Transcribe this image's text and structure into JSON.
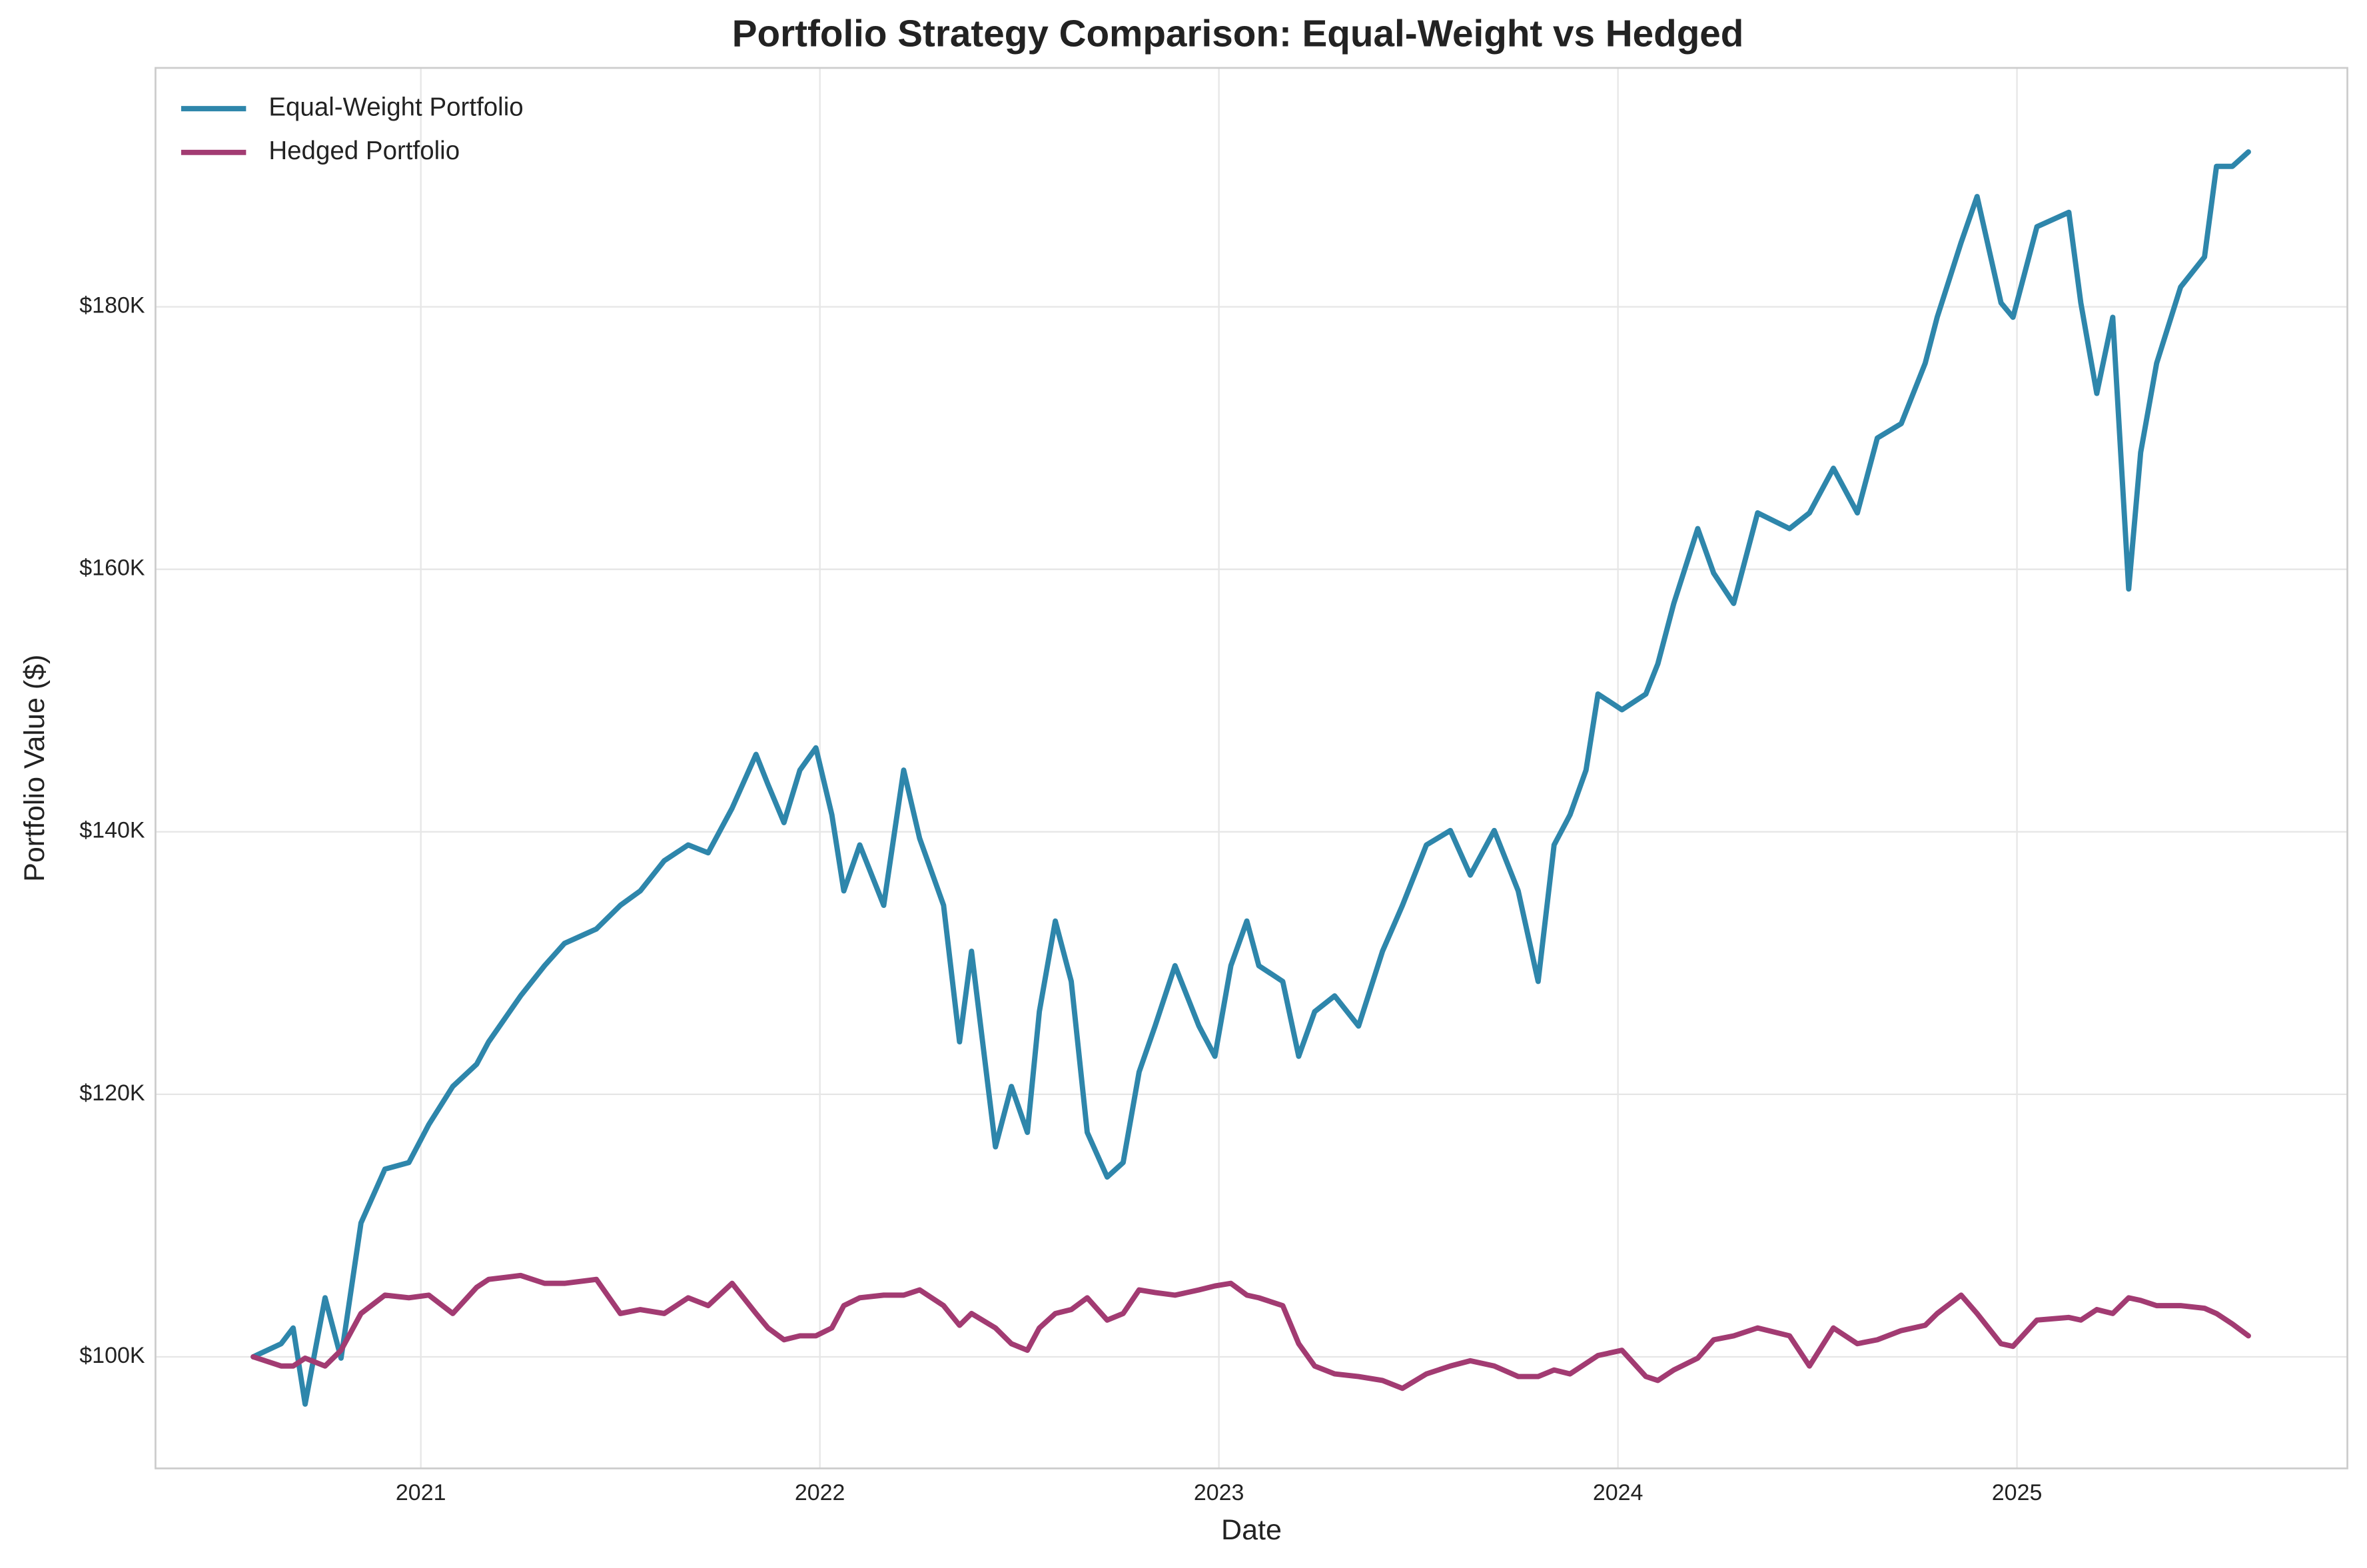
{
  "chart_data": {
    "type": "line",
    "title": "Portfolio Strategy Comparison: Equal-Weight vs Hedged",
    "xlabel": "Date",
    "ylabel": "Portfolio Value ($)",
    "grid": true,
    "legend": "upper left",
    "xlim": [
      2020.335,
      2025.828
    ],
    "xticks": [
      2021,
      2022,
      2023,
      2024,
      2025
    ],
    "ylim": [
      91500,
      198200
    ],
    "yticks": [
      {
        "value": 100000,
        "label": "$100K"
      },
      {
        "value": 120000,
        "label": "$120K"
      },
      {
        "value": 140000,
        "label": "$140K"
      },
      {
        "value": 160000,
        "label": "$160K"
      },
      {
        "value": 180000,
        "label": "$180K"
      }
    ],
    "x": [
      2020.58,
      2020.65,
      2020.68,
      2020.71,
      2020.76,
      2020.8,
      2020.85,
      2020.91,
      2020.97,
      2021.02,
      2021.08,
      2021.14,
      2021.17,
      2021.25,
      2021.31,
      2021.36,
      2021.44,
      2021.5,
      2021.55,
      2021.61,
      2021.67,
      2021.72,
      2021.78,
      2021.84,
      2021.87,
      2021.91,
      2021.95,
      2021.99,
      2022.03,
      2022.06,
      2022.1,
      2022.16,
      2022.21,
      2022.25,
      2022.31,
      2022.35,
      2022.38,
      2022.44,
      2022.48,
      2022.52,
      2022.55,
      2022.59,
      2022.63,
      2022.67,
      2022.72,
      2022.76,
      2022.8,
      2022.84,
      2022.89,
      2022.95,
      2022.99,
      2023.03,
      2023.07,
      2023.1,
      2023.16,
      2023.2,
      2023.24,
      2023.29,
      2023.35,
      2023.41,
      2023.46,
      2023.52,
      2023.58,
      2023.63,
      2023.69,
      2023.75,
      2023.8,
      2023.84,
      2023.88,
      2023.92,
      2023.95,
      2024.01,
      2024.07,
      2024.1,
      2024.14,
      2024.2,
      2024.24,
      2024.29,
      2024.35,
      2024.43,
      2024.48,
      2024.54,
      2024.6,
      2024.65,
      2024.71,
      2024.77,
      2024.8,
      2024.86,
      2024.9,
      2024.96,
      2024.99,
      2025.05,
      2025.13,
      2025.16,
      2025.2,
      2025.24,
      2025.28,
      2025.31,
      2025.35,
      2025.41,
      2025.47,
      2025.5,
      2025.54,
      2025.58
    ],
    "series": [
      {
        "name": "Equal-Weight Portfolio",
        "color": "#2e86ab",
        "values": [
          100000,
          101000,
          102200,
          96400,
          104500,
          99900,
          110200,
          114300,
          114800,
          117700,
          120600,
          122300,
          124000,
          127500,
          129800,
          131500,
          132600,
          134400,
          135500,
          137800,
          139000,
          138400,
          141800,
          145900,
          143600,
          140700,
          144700,
          146400,
          141300,
          135500,
          139000,
          134400,
          144700,
          139500,
          134400,
          124000,
          130900,
          116000,
          120600,
          117100,
          126300,
          133200,
          128600,
          117100,
          113700,
          114800,
          121700,
          125200,
          129800,
          125200,
          122900,
          129800,
          133200,
          129800,
          128600,
          122900,
          126300,
          127500,
          125200,
          130900,
          134400,
          139000,
          140100,
          136700,
          140100,
          135500,
          128600,
          139000,
          141300,
          144700,
          150500,
          149300,
          150500,
          152800,
          157400,
          163100,
          159700,
          157400,
          164300,
          163100,
          164300,
          167700,
          164300,
          170000,
          171100,
          175700,
          179200,
          184900,
          188400,
          180300,
          179200,
          186100,
          187200,
          180300,
          173400,
          179200,
          158500,
          168900,
          175700,
          181500,
          183800,
          190700,
          190700,
          191800
        ]
      },
      {
        "name": "Hedged Portfolio",
        "color": "#a23b72",
        "values": [
          100000,
          99300,
          99300,
          99900,
          99300,
          100500,
          103300,
          104700,
          104500,
          104700,
          103300,
          105300,
          105900,
          106200,
          105600,
          105600,
          105900,
          103300,
          103600,
          103300,
          104500,
          103900,
          105600,
          103300,
          102200,
          101300,
          101600,
          101600,
          102200,
          103900,
          104500,
          104700,
          104700,
          105100,
          103900,
          102400,
          103300,
          102200,
          101000,
          100500,
          102200,
          103300,
          103600,
          104500,
          102800,
          103300,
          105100,
          104900,
          104700,
          105100,
          105400,
          105600,
          104700,
          104500,
          103900,
          101000,
          99300,
          98700,
          98500,
          98200,
          97600,
          98700,
          99300,
          99700,
          99300,
          98500,
          98500,
          99000,
          98700,
          99500,
          100100,
          100500,
          98500,
          98200,
          99000,
          99900,
          101300,
          101600,
          102200,
          101600,
          99300,
          102200,
          101000,
          101300,
          102000,
          102400,
          103300,
          104700,
          103300,
          101000,
          100800,
          102800,
          103000,
          102800,
          103600,
          103300,
          104500,
          104300,
          103900,
          103900,
          103700,
          103300,
          102500,
          101600
        ]
      }
    ]
  }
}
